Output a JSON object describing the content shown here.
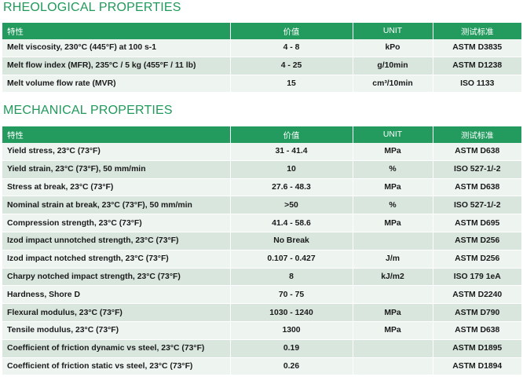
{
  "rheological": {
    "title": "RHEOLOGICAL PROPERTIES",
    "headers": [
      "特性",
      "价值",
      "UNIT",
      "测试标准"
    ],
    "rows": [
      [
        "Melt viscosity, 230°C (445°F) at 100 s-1",
        "4 - 8",
        "kPo",
        "ASTM D3835"
      ],
      [
        "Melt flow index (MFR), 235°C / 5 kg (455°F / 11 lb)",
        "4 - 25",
        "g/10min",
        "ASTM D1238"
      ],
      [
        "Melt volume flow rate (MVR)",
        "15",
        "cm³/10min",
        "ISO 1133"
      ]
    ]
  },
  "mechanical": {
    "title": "MECHANICAL PROPERTIES",
    "headers": [
      "特性",
      "价值",
      "UNIT",
      "测试标准"
    ],
    "rows": [
      [
        "Yield stress, 23°C (73°F)",
        "31 - 41.4",
        "MPa",
        "ASTM D638"
      ],
      [
        "Yield strain, 23°C (73°F), 50 mm/min",
        "10",
        "%",
        "ISO 527-1/-2"
      ],
      [
        "Stress at break, 23°C (73°F)",
        "27.6 - 48.3",
        "MPa",
        "ASTM D638"
      ],
      [
        "Nominal strain at break, 23°C (73°F), 50 mm/min",
        ">50",
        "%",
        "ISO 527-1/-2"
      ],
      [
        "Compression strength, 23°C (73°F)",
        "41.4 - 58.6",
        "MPa",
        "ASTM D695"
      ],
      [
        "Izod impact unnotched strength, 23°C (73°F)",
        "No Break",
        "",
        "ASTM D256"
      ],
      [
        "Izod impact notched strength, 23°C (73°F)",
        "0.107 - 0.427",
        "J/m",
        "ASTM D256"
      ],
      [
        "Charpy notched impact strength, 23°C (73°F)",
        "8",
        "kJ/m2",
        "ISO 179 1eA"
      ],
      [
        "Hardness, Shore D",
        "70 - 75",
        "",
        "ASTM D2240"
      ],
      [
        "Flexural modulus, 23°C (73°F)",
        "1030 - 1240",
        "MPa",
        "ASTM D790"
      ],
      [
        "Tensile modulus, 23°C (73°F)",
        "1300",
        "MPa",
        "ASTM D638"
      ],
      [
        "Coefficient of friction dynamic vs steel, 23°C (73°F)",
        "0.19",
        "",
        "ASTM D1895"
      ],
      [
        "Coefficient of friction static vs steel, 23°C (73°F)",
        "0.26",
        "",
        "ASTM D1894"
      ]
    ]
  }
}
